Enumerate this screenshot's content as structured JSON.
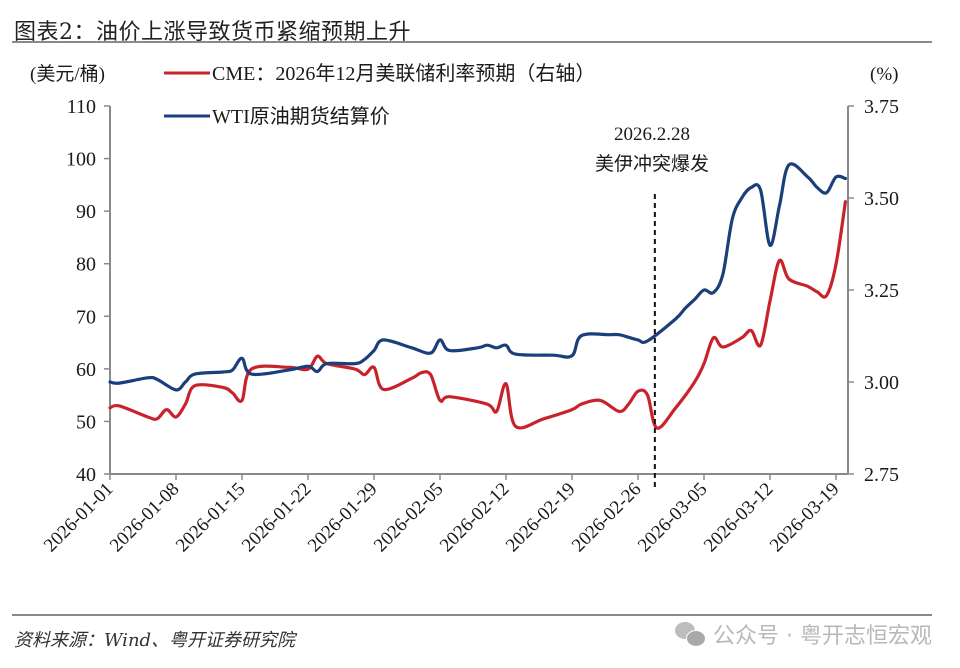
{
  "header": {
    "title": "图表2：油价上涨导致货币紧缩预期上升"
  },
  "footer": {
    "source": "资料来源：Wind、粤开证券研究院",
    "watermark": "公众号 · 粤开志恒宏观",
    "watermark_icon": "wechat-icon"
  },
  "axes": {
    "left_unit": "(美元/桶)",
    "right_unit": "(%)"
  },
  "legend": {
    "cme": "CME：2026年12月美联储利率预期（右轴）",
    "wti": "WTI原油期货结算价"
  },
  "annotation": {
    "date": "2026.2.28",
    "label": "美伊冲突爆发"
  },
  "colors": {
    "cme": "#c8232c",
    "wti": "#1b3f7a",
    "axis": "#8a8a8a",
    "text": "#1a1a1a"
  },
  "chart_data": {
    "type": "line",
    "title": "图表2：油价上涨导致货币紧缩预期上升",
    "xlabel": "",
    "ylabel": "美元/桶",
    "ylabel_right": "%",
    "ylim": [
      40,
      110
    ],
    "ylim_right": [
      2.75,
      3.75
    ],
    "yticks": [
      40,
      50,
      60,
      70,
      80,
      90,
      100,
      110
    ],
    "yticks_right": [
      "2.75",
      "3.00",
      "3.25",
      "3.50",
      "3.75"
    ],
    "x_tick_labels": [
      "2026-01-01",
      "2026-01-08",
      "2026-01-15",
      "2026-01-22",
      "2026-01-29",
      "2026-02-05",
      "2026-02-12",
      "2026-02-19",
      "2026-02-26",
      "2026-03-05",
      "2026-03-12",
      "2026-03-19"
    ],
    "x_range": [
      "2026-01-01",
      "2026-03-20"
    ],
    "grid": false,
    "legend_position": "top-left",
    "annotations": [
      {
        "x": "2026-02-28",
        "type": "vertical-dashed-line",
        "text": "2026.2.28 美伊冲突爆发"
      }
    ],
    "series": [
      {
        "name": "WTI原油期货结算价",
        "axis": "left",
        "color": "#1b3f7a",
        "x": [
          "2026-01-01",
          "2026-01-02",
          "2026-01-05",
          "2026-01-06",
          "2026-01-08",
          "2026-01-09",
          "2026-01-10",
          "2026-01-13",
          "2026-01-14",
          "2026-01-15",
          "2026-01-16",
          "2026-01-20",
          "2026-01-22",
          "2026-01-23",
          "2026-01-24",
          "2026-01-27",
          "2026-01-28",
          "2026-01-29",
          "2026-01-30",
          "2026-02-02",
          "2026-02-04",
          "2026-02-05",
          "2026-02-06",
          "2026-02-09",
          "2026-02-10",
          "2026-02-11",
          "2026-02-12",
          "2026-02-13",
          "2026-02-17",
          "2026-02-19",
          "2026-02-20",
          "2026-02-23",
          "2026-02-24",
          "2026-02-25",
          "2026-02-26",
          "2026-02-27",
          "2026-03-02",
          "2026-03-03",
          "2026-03-04",
          "2026-03-05",
          "2026-03-06",
          "2026-03-07",
          "2026-03-08",
          "2026-03-09",
          "2026-03-10",
          "2026-03-11",
          "2026-03-12",
          "2026-03-13",
          "2026-03-14",
          "2026-03-16",
          "2026-03-17",
          "2026-03-18",
          "2026-03-19",
          "2026-03-20"
        ],
        "values": [
          57.5,
          57.3,
          58.3,
          58.0,
          56.0,
          57.5,
          59.0,
          59.4,
          59.8,
          62.0,
          59.0,
          59.8,
          60.5,
          59.5,
          61.0,
          61.0,
          61.8,
          63.5,
          65.5,
          64.0,
          63.0,
          65.5,
          63.5,
          64.0,
          64.5,
          64.0,
          64.5,
          62.8,
          62.6,
          62.5,
          66.3,
          66.5,
          66.5,
          66.0,
          65.5,
          65.3,
          69.5,
          71.5,
          73.2,
          75.0,
          74.5,
          78.0,
          88.5,
          92.5,
          94.5,
          94.0,
          83.5,
          91.0,
          98.8,
          96.5,
          94.5,
          93.5,
          96.5,
          96.2
        ]
      },
      {
        "name": "CME：2026年12月美联储利率预期（右轴）",
        "axis": "right",
        "color": "#c8232c",
        "x": [
          "2026-01-01",
          "2026-01-02",
          "2026-01-05",
          "2026-01-06",
          "2026-01-07",
          "2026-01-08",
          "2026-01-09",
          "2026-01-10",
          "2026-01-13",
          "2026-01-14",
          "2026-01-15",
          "2026-01-16",
          "2026-01-20",
          "2026-01-22",
          "2026-01-23",
          "2026-01-24",
          "2026-01-27",
          "2026-01-28",
          "2026-01-29",
          "2026-01-30",
          "2026-02-02",
          "2026-02-03",
          "2026-02-04",
          "2026-02-05",
          "2026-02-06",
          "2026-02-10",
          "2026-02-11",
          "2026-02-12",
          "2026-02-13",
          "2026-02-16",
          "2026-02-19",
          "2026-02-20",
          "2026-02-22",
          "2026-02-24",
          "2026-02-25",
          "2026-02-26",
          "2026-02-27",
          "2026-02-28",
          "2026-03-02",
          "2026-03-04",
          "2026-03-05",
          "2026-03-06",
          "2026-03-07",
          "2026-03-09",
          "2026-03-10",
          "2026-03-11",
          "2026-03-12",
          "2026-03-13",
          "2026-03-14",
          "2026-03-16",
          "2026-03-17",
          "2026-03-18",
          "2026-03-19",
          "2026-03-20"
        ],
        "values": [
          2.93,
          2.935,
          2.905,
          2.9,
          2.925,
          2.905,
          2.94,
          2.99,
          2.985,
          2.97,
          2.95,
          3.035,
          3.04,
          3.035,
          3.07,
          3.05,
          3.035,
          3.02,
          3.04,
          2.98,
          3.01,
          3.025,
          3.02,
          2.95,
          2.96,
          2.94,
          2.92,
          2.995,
          2.88,
          2.9,
          2.925,
          2.94,
          2.95,
          2.92,
          2.94,
          2.975,
          2.965,
          2.875,
          2.93,
          3.0,
          3.05,
          3.12,
          3.095,
          3.12,
          3.14,
          3.1,
          3.22,
          3.33,
          3.28,
          3.26,
          3.245,
          3.235,
          3.32,
          3.49
        ]
      }
    ]
  }
}
